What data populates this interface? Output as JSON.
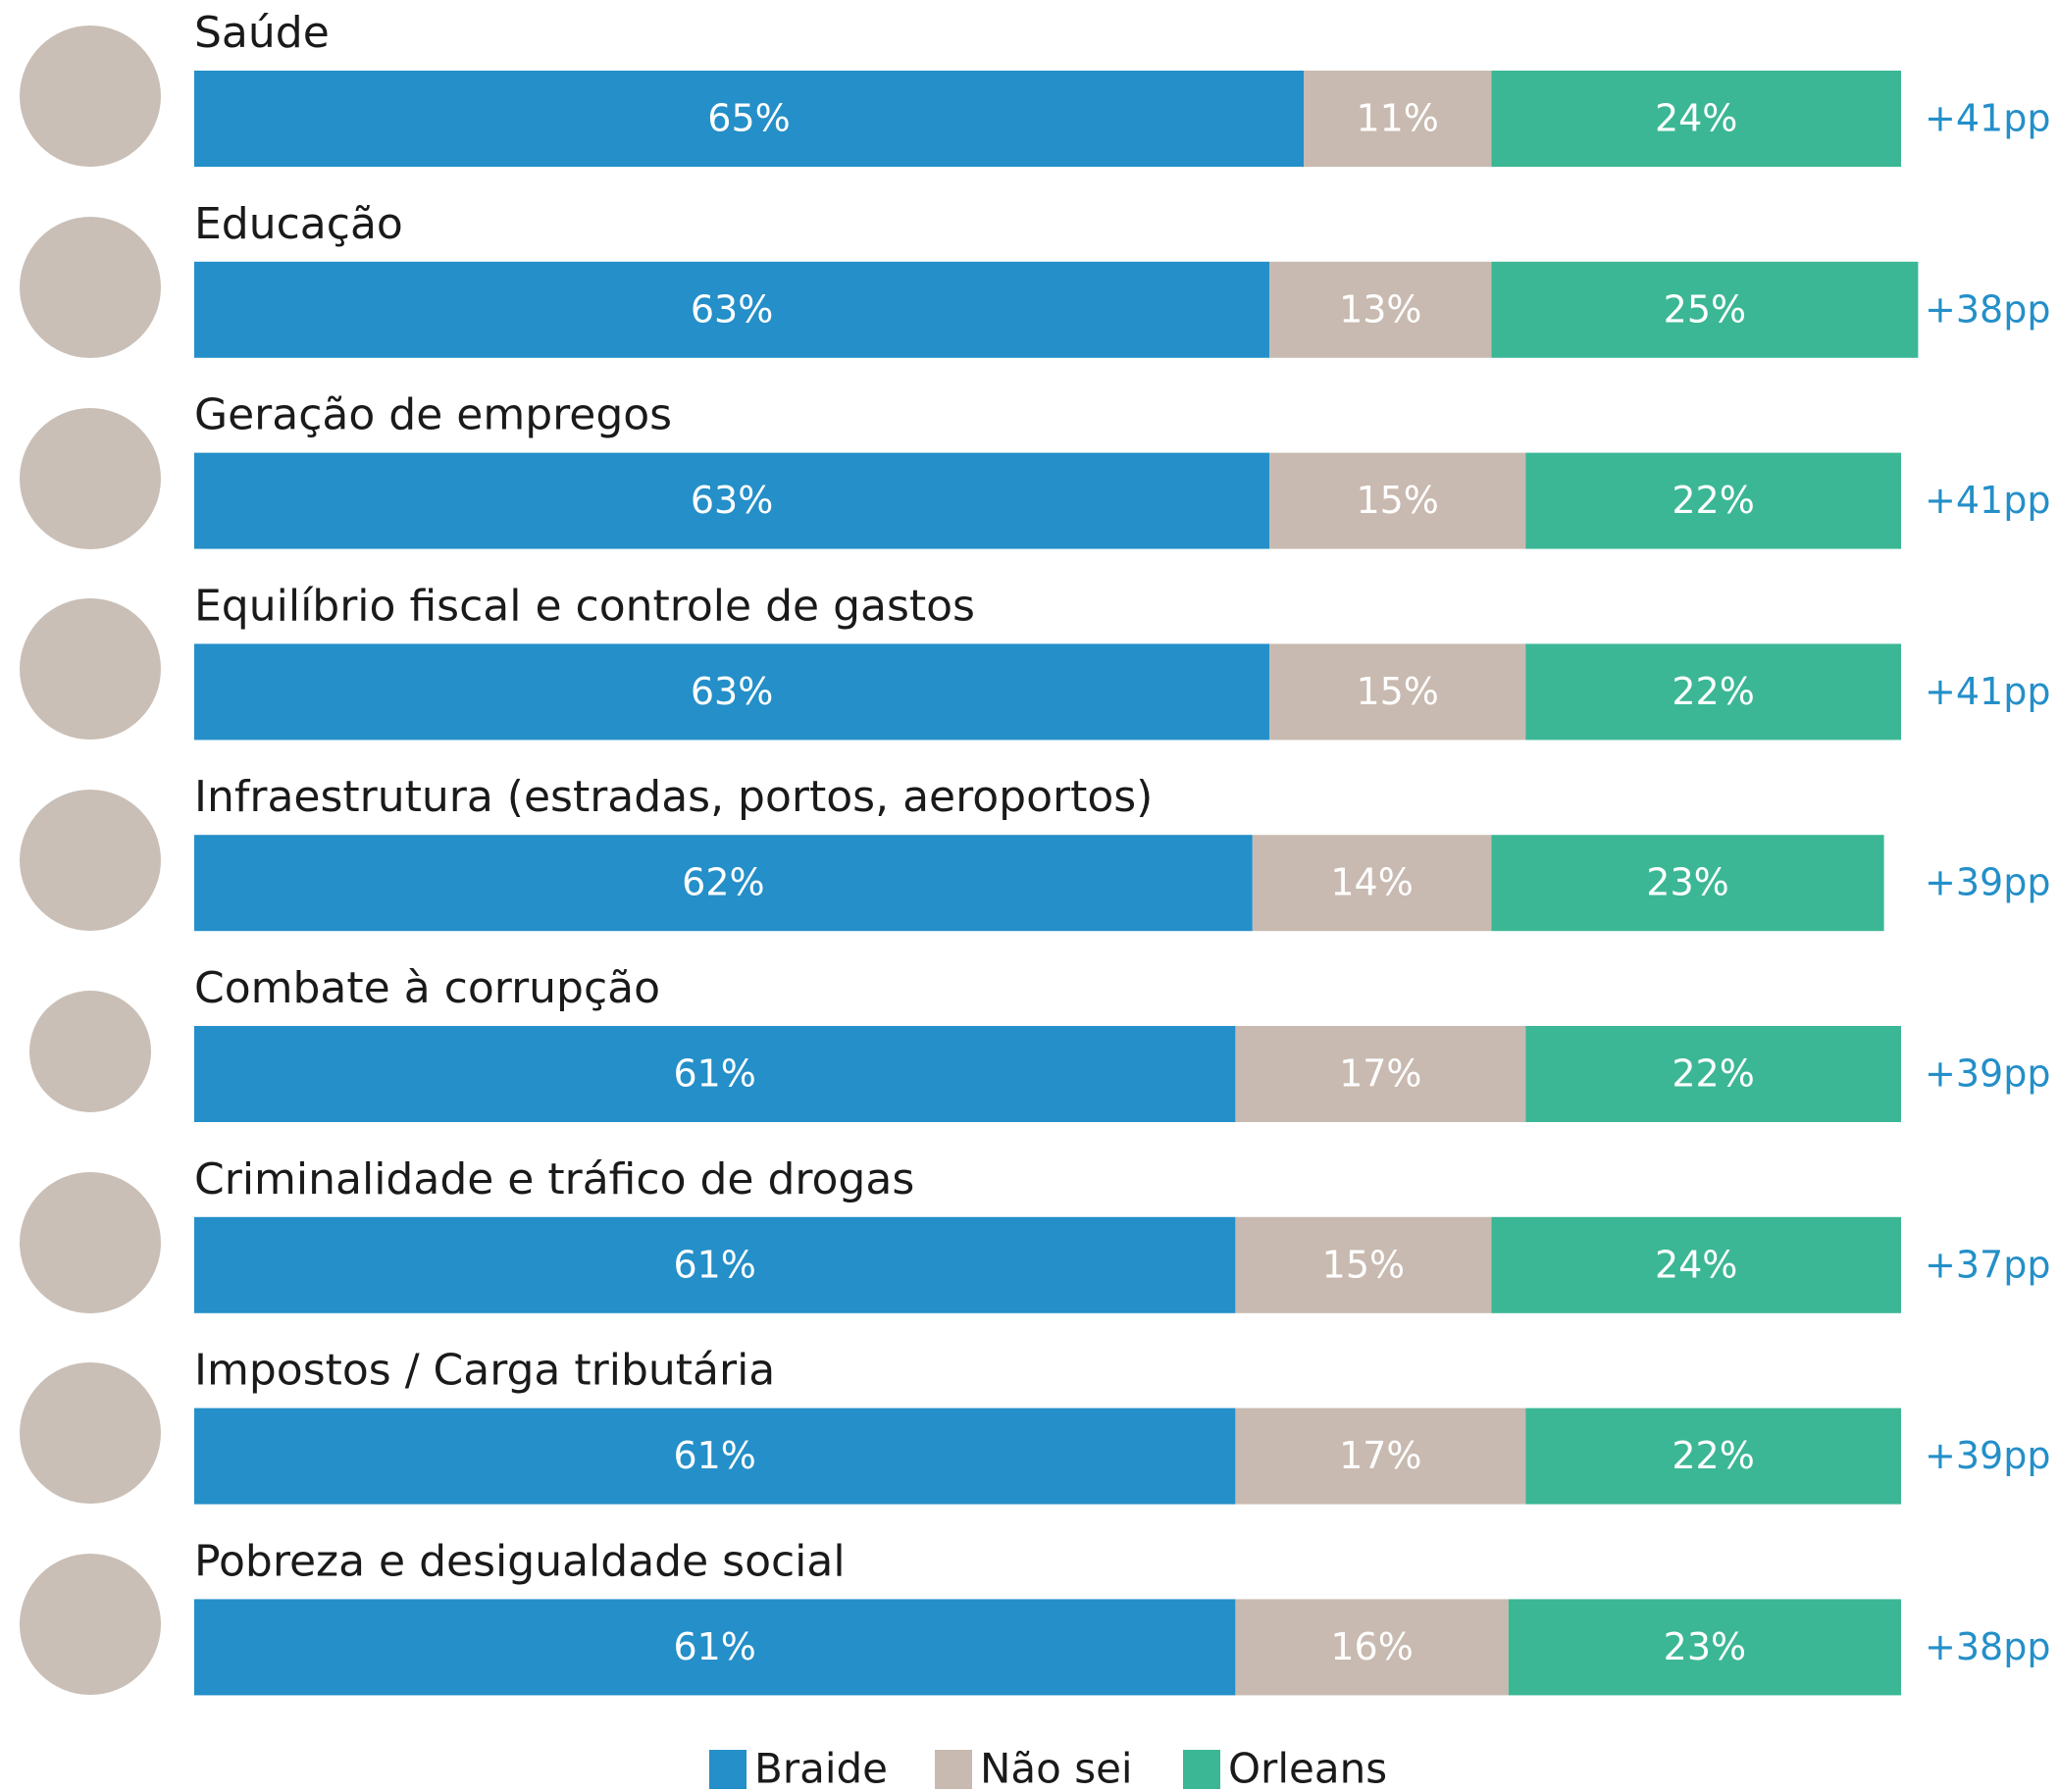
{
  "chart_data": {
    "type": "stacked-bar",
    "categories": [
      "Saúde",
      "Educação",
      "Geração de empregos",
      "Equilíbrio fiscal e controle de gastos",
      "Infraestrutura (estradas, portos, aeroportos)",
      "Combate à corrupção",
      "Criminalidade e tráfico de drogas",
      "Impostos / Carga tributária",
      "Pobreza e desigualdade social"
    ],
    "series": [
      {
        "name": "Braide",
        "color": "#248fc8",
        "values": [
          65,
          63,
          63,
          63,
          62,
          61,
          61,
          61,
          61
        ],
        "value_labels": [
          "65%",
          "63%",
          "63%",
          "63%",
          "62%",
          "61%",
          "61%",
          "61%",
          "61%"
        ]
      },
      {
        "name": "Não sei",
        "color": "#c8bab0",
        "values": [
          11,
          13,
          15,
          15,
          14,
          17,
          15,
          17,
          16
        ],
        "value_labels": [
          "11%",
          "13%",
          "15%",
          "15%",
          "14%",
          "17%",
          "15%",
          "17%",
          "16%"
        ]
      },
      {
        "name": "Orleans",
        "color": "#3bb795",
        "values": [
          24,
          25,
          22,
          22,
          23,
          22,
          24,
          22,
          23
        ],
        "value_labels": [
          "24%",
          "25%",
          "22%",
          "22%",
          "23%",
          "22%",
          "24%",
          "22%",
          "23%"
        ]
      }
    ],
    "annotations": [
      "+41pp",
      "+38pp",
      "+41pp",
      "+41pp",
      "+39pp",
      "+39pp",
      "+37pp",
      "+39pp",
      "+38pp"
    ],
    "xlim": [
      0,
      100
    ],
    "legend": "bottom"
  }
}
